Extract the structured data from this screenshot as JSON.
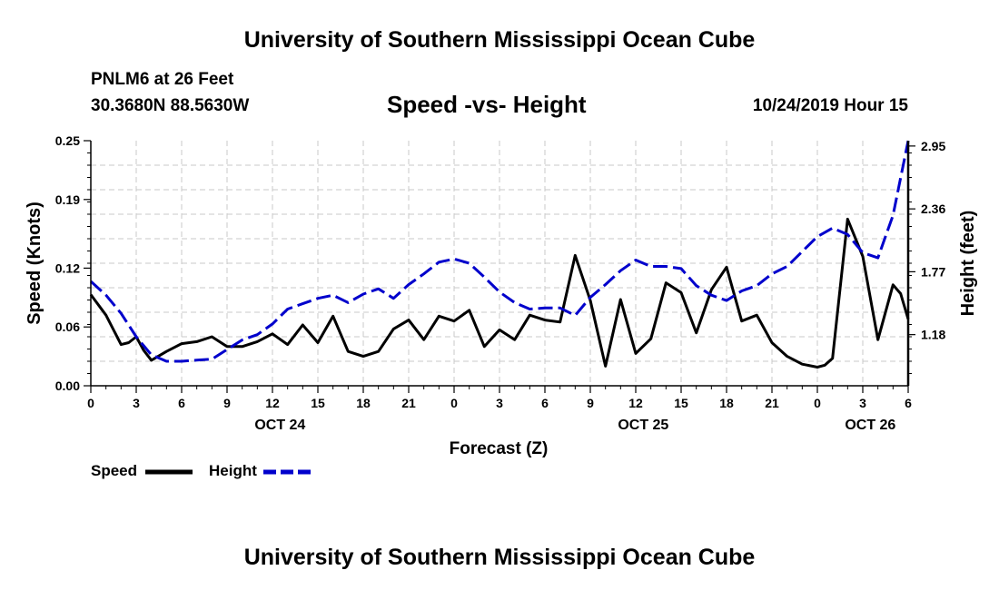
{
  "header": {
    "title": "University of Southern Mississippi Ocean Cube",
    "station_name": "PNLM6 at 26 Feet",
    "coordinates": "30.3680N 88.5630W",
    "chart_title": "Speed -vs- Height",
    "timestamp": "10/24/2019 Hour 15"
  },
  "footer": {
    "title": "University of Southern Mississippi Ocean Cube"
  },
  "legend": {
    "speed_label": "Speed",
    "height_label": "Height",
    "speed_color": "#000000",
    "height_color": "#0000cc"
  },
  "chart_data": {
    "type": "line",
    "title": "Speed -vs- Height",
    "xlabel": "Forecast (Z)",
    "ylabel": "Speed (Knots)",
    "y2label": "Height (feet)",
    "x_range": [
      0,
      54
    ],
    "ylim": [
      0.0,
      0.25
    ],
    "y2lim": [
      0.7,
      3.0
    ],
    "y_ticks": [
      0.0,
      0.06,
      0.12,
      0.19,
      0.25
    ],
    "y_tick_labels": [
      "0.00",
      "0.06",
      "0.12",
      "0.19",
      "0.25"
    ],
    "y2_ticks": [
      1.18,
      1.77,
      2.36,
      2.95
    ],
    "y2_tick_labels": [
      "1.18",
      "1.77",
      "2.36",
      "2.95"
    ],
    "x_ticks": [
      0,
      3,
      6,
      9,
      12,
      15,
      18,
      21,
      24,
      27,
      30,
      33,
      36,
      39,
      42,
      45,
      48,
      51,
      54
    ],
    "x_tick_labels": [
      "0",
      "3",
      "6",
      "9",
      "12",
      "15",
      "18",
      "21",
      "0",
      "3",
      "6",
      "9",
      "12",
      "15",
      "18",
      "21",
      "0",
      "3",
      "6"
    ],
    "date_labels": [
      {
        "label": "OCT 24",
        "x": 12.5
      },
      {
        "label": "OCT 25",
        "x": 36.5
      },
      {
        "label": "OCT 26",
        "x": 51.5
      }
    ],
    "grid": true,
    "legend_position": "bottom-left",
    "series": [
      {
        "name": "Speed",
        "axis": "left",
        "style": "solid",
        "color": "#000000",
        "x": [
          0,
          1,
          2,
          2.5,
          3,
          3.5,
          4,
          5,
          6,
          7,
          8,
          9,
          10,
          11,
          12,
          13,
          14,
          15,
          16,
          17,
          18,
          19,
          20,
          21,
          22,
          23,
          24,
          25,
          26,
          27,
          28,
          29,
          30,
          31,
          32,
          33,
          34,
          35,
          36,
          37,
          38,
          39,
          40,
          41,
          42,
          43,
          44,
          45,
          46,
          47,
          48,
          48.5,
          49,
          50,
          51,
          52,
          53,
          53.5,
          54
        ],
        "values": [
          0.093,
          0.072,
          0.042,
          0.044,
          0.05,
          0.036,
          0.026,
          0.035,
          0.043,
          0.045,
          0.05,
          0.04,
          0.04,
          0.045,
          0.053,
          0.042,
          0.062,
          0.044,
          0.071,
          0.035,
          0.03,
          0.035,
          0.058,
          0.067,
          0.047,
          0.071,
          0.066,
          0.077,
          0.04,
          0.057,
          0.047,
          0.072,
          0.067,
          0.065,
          0.133,
          0.087,
          0.02,
          0.088,
          0.033,
          0.048,
          0.105,
          0.095,
          0.054,
          0.098,
          0.121,
          0.066,
          0.072,
          0.044,
          0.03,
          0.022,
          0.019,
          0.021,
          0.028,
          0.17,
          0.132,
          0.047,
          0.103,
          0.094,
          0.068
        ]
      },
      {
        "name": "Height",
        "axis": "right",
        "style": "dashed",
        "color": "#0000cc",
        "x": [
          0,
          1,
          2,
          3,
          4,
          5,
          6,
          7,
          8,
          9,
          10,
          11,
          12,
          13,
          14,
          15,
          16,
          17,
          18,
          19,
          20,
          21,
          22,
          23,
          24,
          25,
          26,
          27,
          28,
          29,
          30,
          31,
          32,
          33,
          34,
          35,
          36,
          37,
          38,
          39,
          40,
          41,
          42,
          43,
          44,
          45,
          46,
          47,
          48,
          49,
          50,
          51,
          52,
          53,
          54
        ],
        "values": [
          1.68,
          1.55,
          1.38,
          1.16,
          0.99,
          0.93,
          0.93,
          0.94,
          0.95,
          1.04,
          1.13,
          1.18,
          1.28,
          1.42,
          1.47,
          1.52,
          1.55,
          1.48,
          1.56,
          1.61,
          1.52,
          1.65,
          1.75,
          1.86,
          1.89,
          1.85,
          1.72,
          1.58,
          1.48,
          1.42,
          1.43,
          1.43,
          1.36,
          1.53,
          1.65,
          1.78,
          1.88,
          1.82,
          1.82,
          1.8,
          1.64,
          1.55,
          1.5,
          1.59,
          1.64,
          1.75,
          1.82,
          1.96,
          2.1,
          2.18,
          2.12,
          1.95,
          1.9,
          2.3,
          3.0
        ]
      }
    ]
  }
}
